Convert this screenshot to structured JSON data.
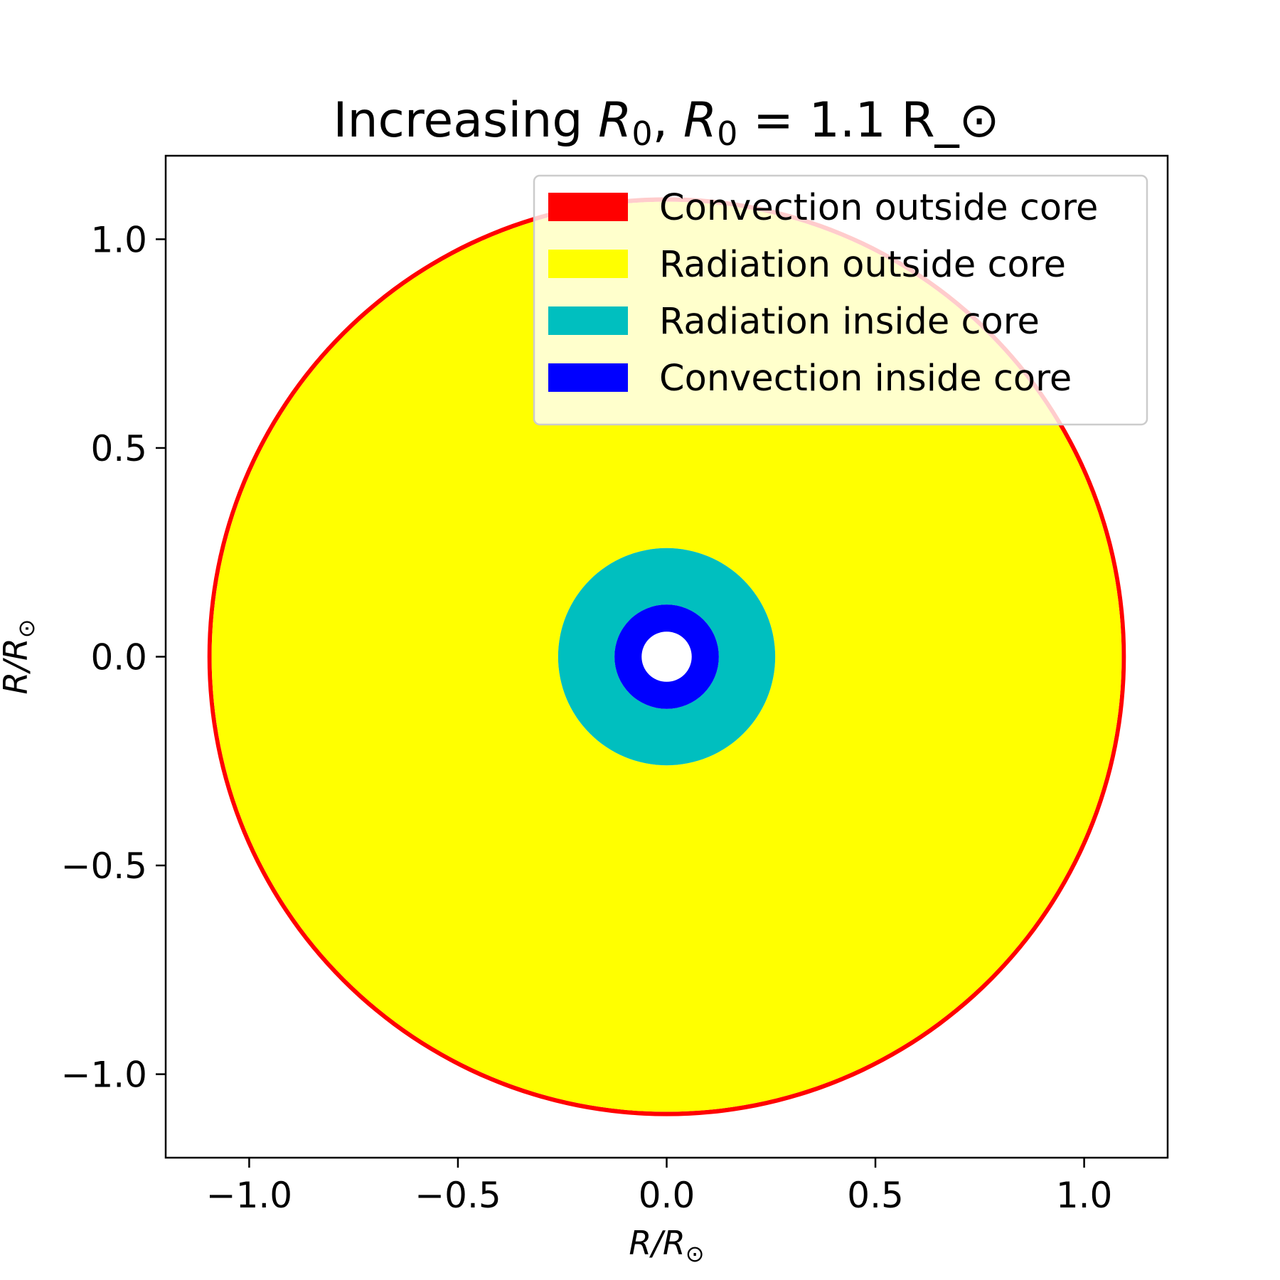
{
  "chart_data": {
    "type": "area",
    "title": {
      "prefix": "Increasing ",
      "var1": "R",
      "sub1": "0",
      "mid": ", ",
      "var2": "R",
      "sub2": "0",
      "suffix": " = 1.1 R_⊙"
    },
    "xlabel": {
      "main": "R/R",
      "sub": "⊙"
    },
    "ylabel": {
      "main": "R/R",
      "sub": "⊙"
    },
    "xlim": [
      -1.2,
      1.2
    ],
    "ylim": [
      -1.2,
      1.2
    ],
    "xticks": [
      -1.0,
      -0.5,
      0.0,
      0.5,
      1.0
    ],
    "yticks": [
      -1.0,
      -0.5,
      0.0,
      0.5,
      1.0
    ],
    "xtick_labels": [
      "−1.0",
      "−0.5",
      "0.0",
      "0.5",
      "1.0"
    ],
    "ytick_labels": [
      "−1.0",
      "−0.5",
      "0.0",
      "0.5",
      "1.0"
    ],
    "grid": false,
    "legend_position": "upper right",
    "series": [
      {
        "name": "Convection outside core",
        "color": "#ff0000",
        "kind": "ring",
        "r_outer": 1.1,
        "r_inner": 1.09
      },
      {
        "name": "Radiation outside core",
        "color": "#ffff00",
        "kind": "ring",
        "r_outer": 1.09,
        "r_inner": 0.26
      },
      {
        "name": "Radiation inside core",
        "color": "#00bfbf",
        "kind": "ring",
        "r_outer": 0.26,
        "r_inner": 0.125
      },
      {
        "name": "Convection inside core",
        "color": "#0000ff",
        "kind": "ring",
        "r_outer": 0.125,
        "r_inner": 0.06
      }
    ]
  }
}
